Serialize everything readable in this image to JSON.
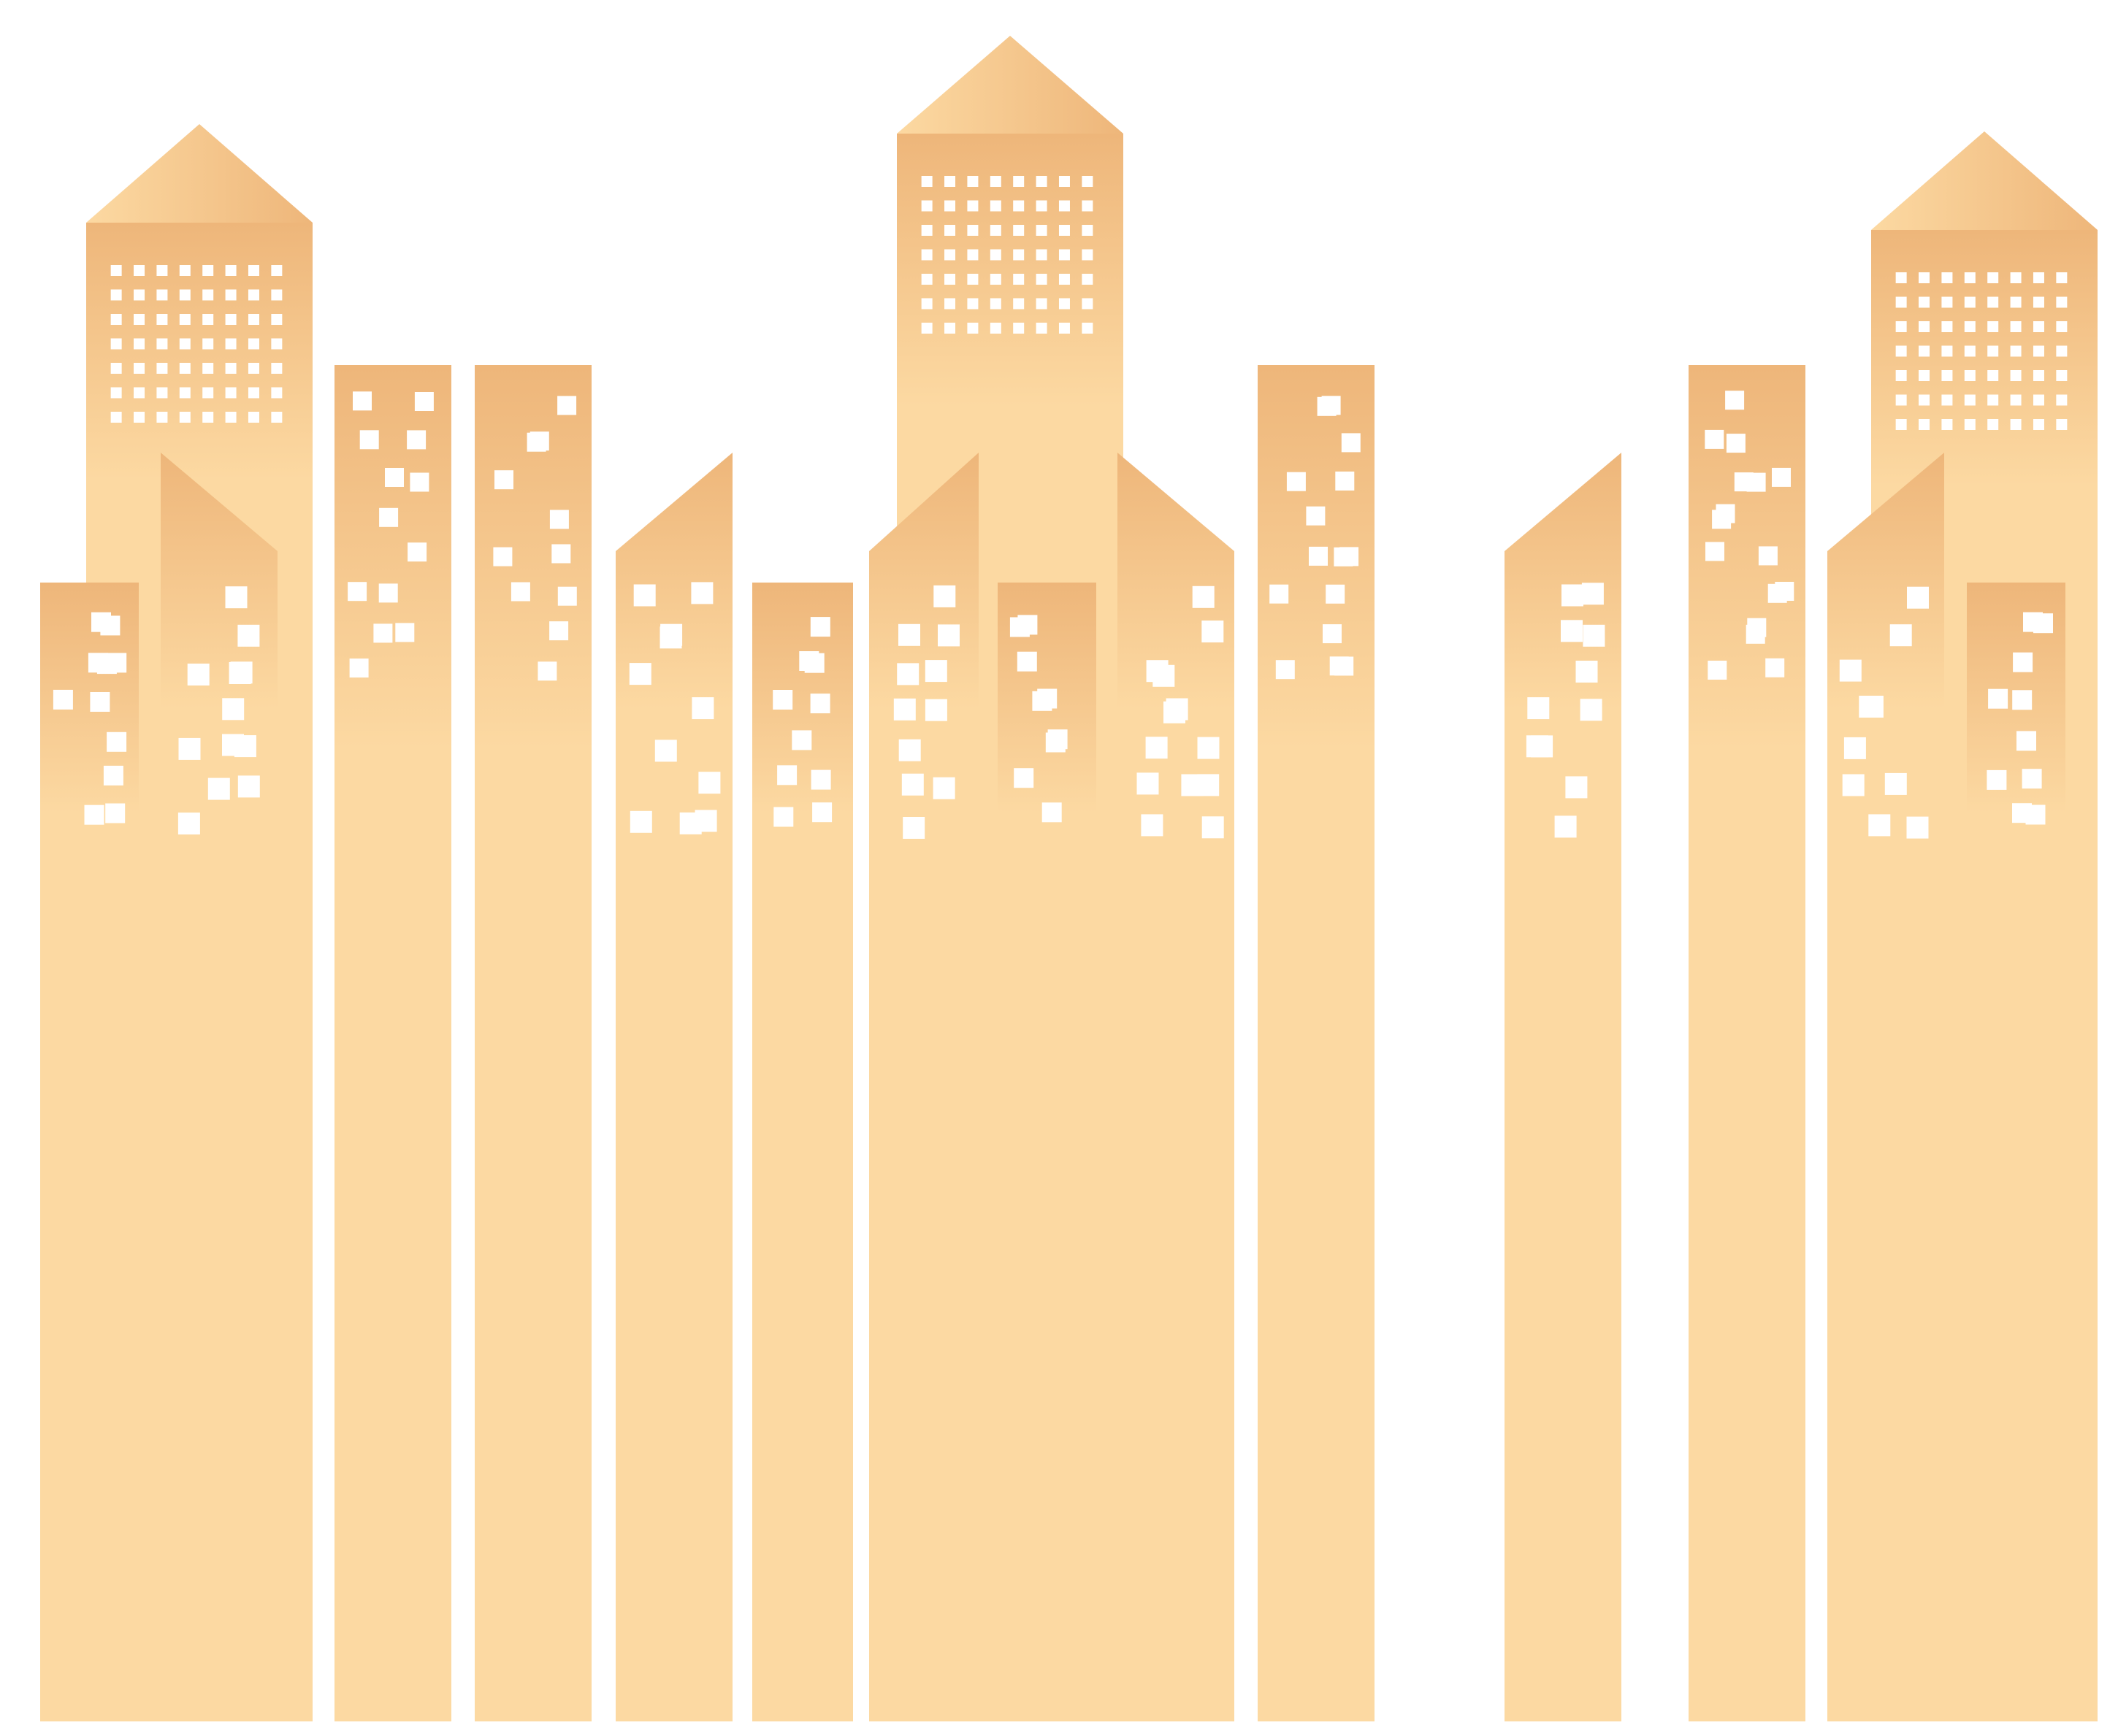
{
  "illustration": {
    "subject": "skyline-of-buildings",
    "background_color": "#ffffff",
    "colors": {
      "facade_top": "#eeb67a",
      "facade_base": "#fcd9a2",
      "roof_light": "#fcd9a2",
      "roof_dark": "#eeb67a",
      "window": "#ffffff"
    }
  }
}
